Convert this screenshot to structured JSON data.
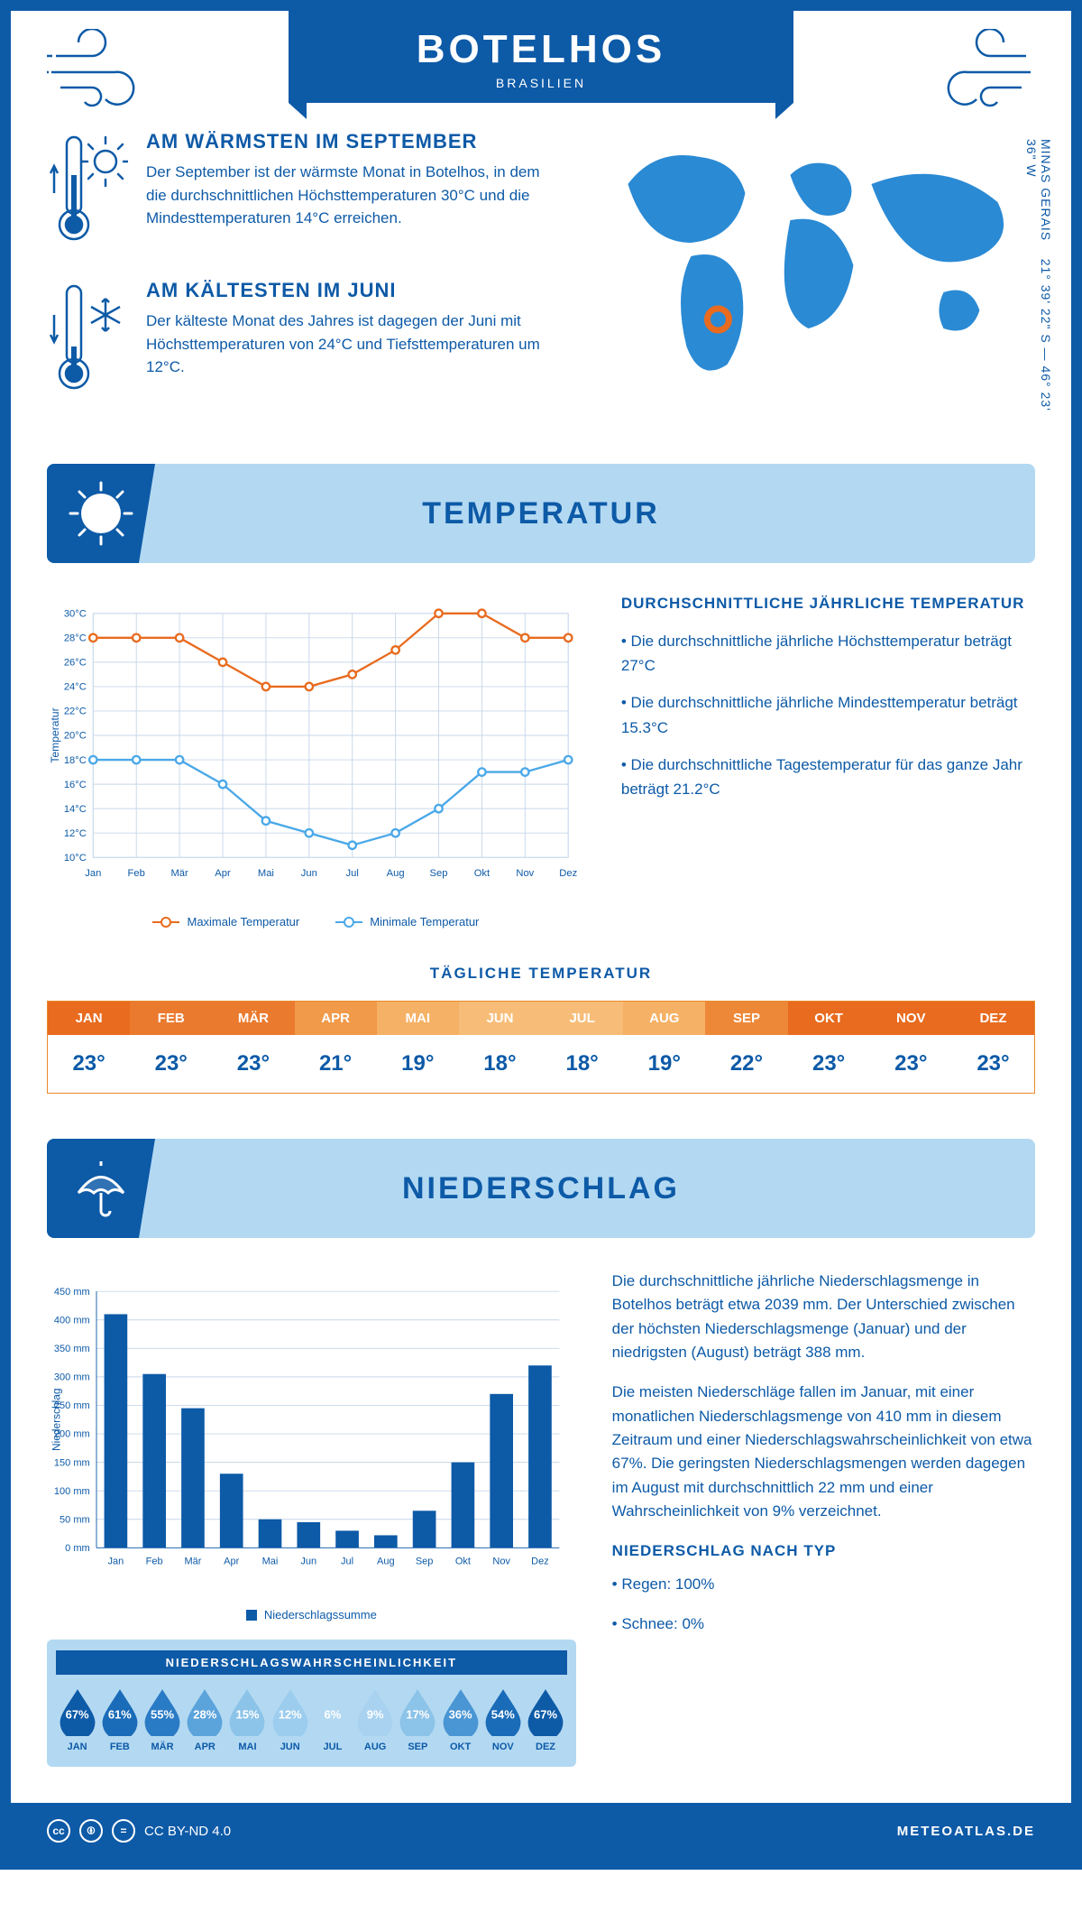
{
  "header": {
    "title": "BOTELHOS",
    "subtitle": "BRASILIEN"
  },
  "coords": {
    "region": "MINAS GERAIS",
    "lat": "21° 39' 22\" S",
    "lon": "46° 23' 36\" W"
  },
  "facts": {
    "warm": {
      "title": "AM WÄRMSTEN IM SEPTEMBER",
      "text": "Der September ist der wärmste Monat in Botelhos, in dem die durchschnittlichen Höchsttemperaturen 30°C und die Mindesttemperaturen 14°C erreichen."
    },
    "cold": {
      "title": "AM KÄLTESTEN IM JUNI",
      "text": "Der kälteste Monat des Jahres ist dagegen der Juni mit Höchsttemperaturen von 24°C und Tiefsttemperaturen um 12°C."
    }
  },
  "sections": {
    "temp": "TEMPERATUR",
    "precip": "NIEDERSCHLAG"
  },
  "months": [
    "Jan",
    "Feb",
    "Mär",
    "Apr",
    "Mai",
    "Jun",
    "Jul",
    "Aug",
    "Sep",
    "Okt",
    "Nov",
    "Dez"
  ],
  "months_upper": [
    "JAN",
    "FEB",
    "MÄR",
    "APR",
    "MAI",
    "JUN",
    "JUL",
    "AUG",
    "SEP",
    "OKT",
    "NOV",
    "DEZ"
  ],
  "temp_chart": {
    "ylabel": "Temperatur",
    "ymin": 10,
    "ymax": 30,
    "ystep": 2,
    "max_series": [
      28,
      28,
      28,
      26,
      24,
      24,
      25,
      27,
      30,
      30,
      28,
      28
    ],
    "min_series": [
      18,
      18,
      18,
      16,
      13,
      12,
      11,
      12,
      14,
      17,
      17,
      18
    ],
    "max_color": "#e86b1f",
    "min_color": "#4aa8e8",
    "grid_color": "#c7d7ea",
    "legend_max": "Maximale Temperatur",
    "legend_min": "Minimale Temperatur"
  },
  "temp_text": {
    "heading": "DURCHSCHNITTLICHE JÄHRLICHE TEMPERATUR",
    "b1": "• Die durchschnittliche jährliche Höchsttemperatur beträgt 27°C",
    "b2": "• Die durchschnittliche jährliche Mindesttemperatur beträgt 15.3°C",
    "b3": "• Die durchschnittliche Tagestemperatur für das ganze Jahr beträgt 21.2°C"
  },
  "daily_temp": {
    "heading": "TÄGLICHE TEMPERATUR",
    "values": [
      "23°",
      "23°",
      "23°",
      "21°",
      "19°",
      "18°",
      "18°",
      "19°",
      "22°",
      "23°",
      "23°",
      "23°"
    ],
    "colors": [
      "#e86b1f",
      "#ea7a2e",
      "#ea7a2e",
      "#f09a4a",
      "#f5b165",
      "#f7bd78",
      "#f7bd78",
      "#f5b165",
      "#ed8838",
      "#e86b1f",
      "#e86b1f",
      "#e86b1f"
    ]
  },
  "precip_chart": {
    "ylabel": "Niederschlag",
    "ymin": 0,
    "ymax": 450,
    "ystep": 50,
    "values": [
      410,
      305,
      245,
      130,
      50,
      45,
      30,
      22,
      65,
      150,
      270,
      320
    ],
    "bar_color": "#0d5aa7",
    "grid_color": "#c7d7ea",
    "legend": "Niederschlagssumme"
  },
  "precip_text": {
    "p1": "Die durchschnittliche jährliche Niederschlagsmenge in Botelhos beträgt etwa 2039 mm. Der Unterschied zwischen der höchsten Niederschlagsmenge (Januar) und der niedrigsten (August) beträgt 388 mm.",
    "p2": "Die meisten Niederschläge fallen im Januar, mit einer monatlichen Niederschlagsmenge von 410 mm in diesem Zeitraum und einer Niederschlagswahrscheinlichkeit von etwa 67%. Die geringsten Niederschlagsmengen werden dagegen im August mit durchschnittlich 22 mm und einer Wahrscheinlichkeit von 9% verzeichnet.",
    "type_heading": "NIEDERSCHLAG NACH TYP",
    "rain": "• Regen: 100%",
    "snow": "• Schnee: 0%"
  },
  "prob": {
    "heading": "NIEDERSCHLAGSWAHRSCHEINLICHKEIT",
    "values": [
      "67%",
      "61%",
      "55%",
      "28%",
      "15%",
      "12%",
      "6%",
      "9%",
      "17%",
      "36%",
      "54%",
      "67%"
    ],
    "colors": [
      "#0d5aa7",
      "#1a6bb8",
      "#2a7bc5",
      "#5ba3db",
      "#8cc3e8",
      "#9ccdee",
      "#b3d9f2",
      "#a8d2f0",
      "#8cc3e8",
      "#4a95d3",
      "#1a6bb8",
      "#0d5aa7"
    ]
  },
  "footer": {
    "license": "CC BY-ND 4.0",
    "site": "METEOATLAS.DE"
  }
}
